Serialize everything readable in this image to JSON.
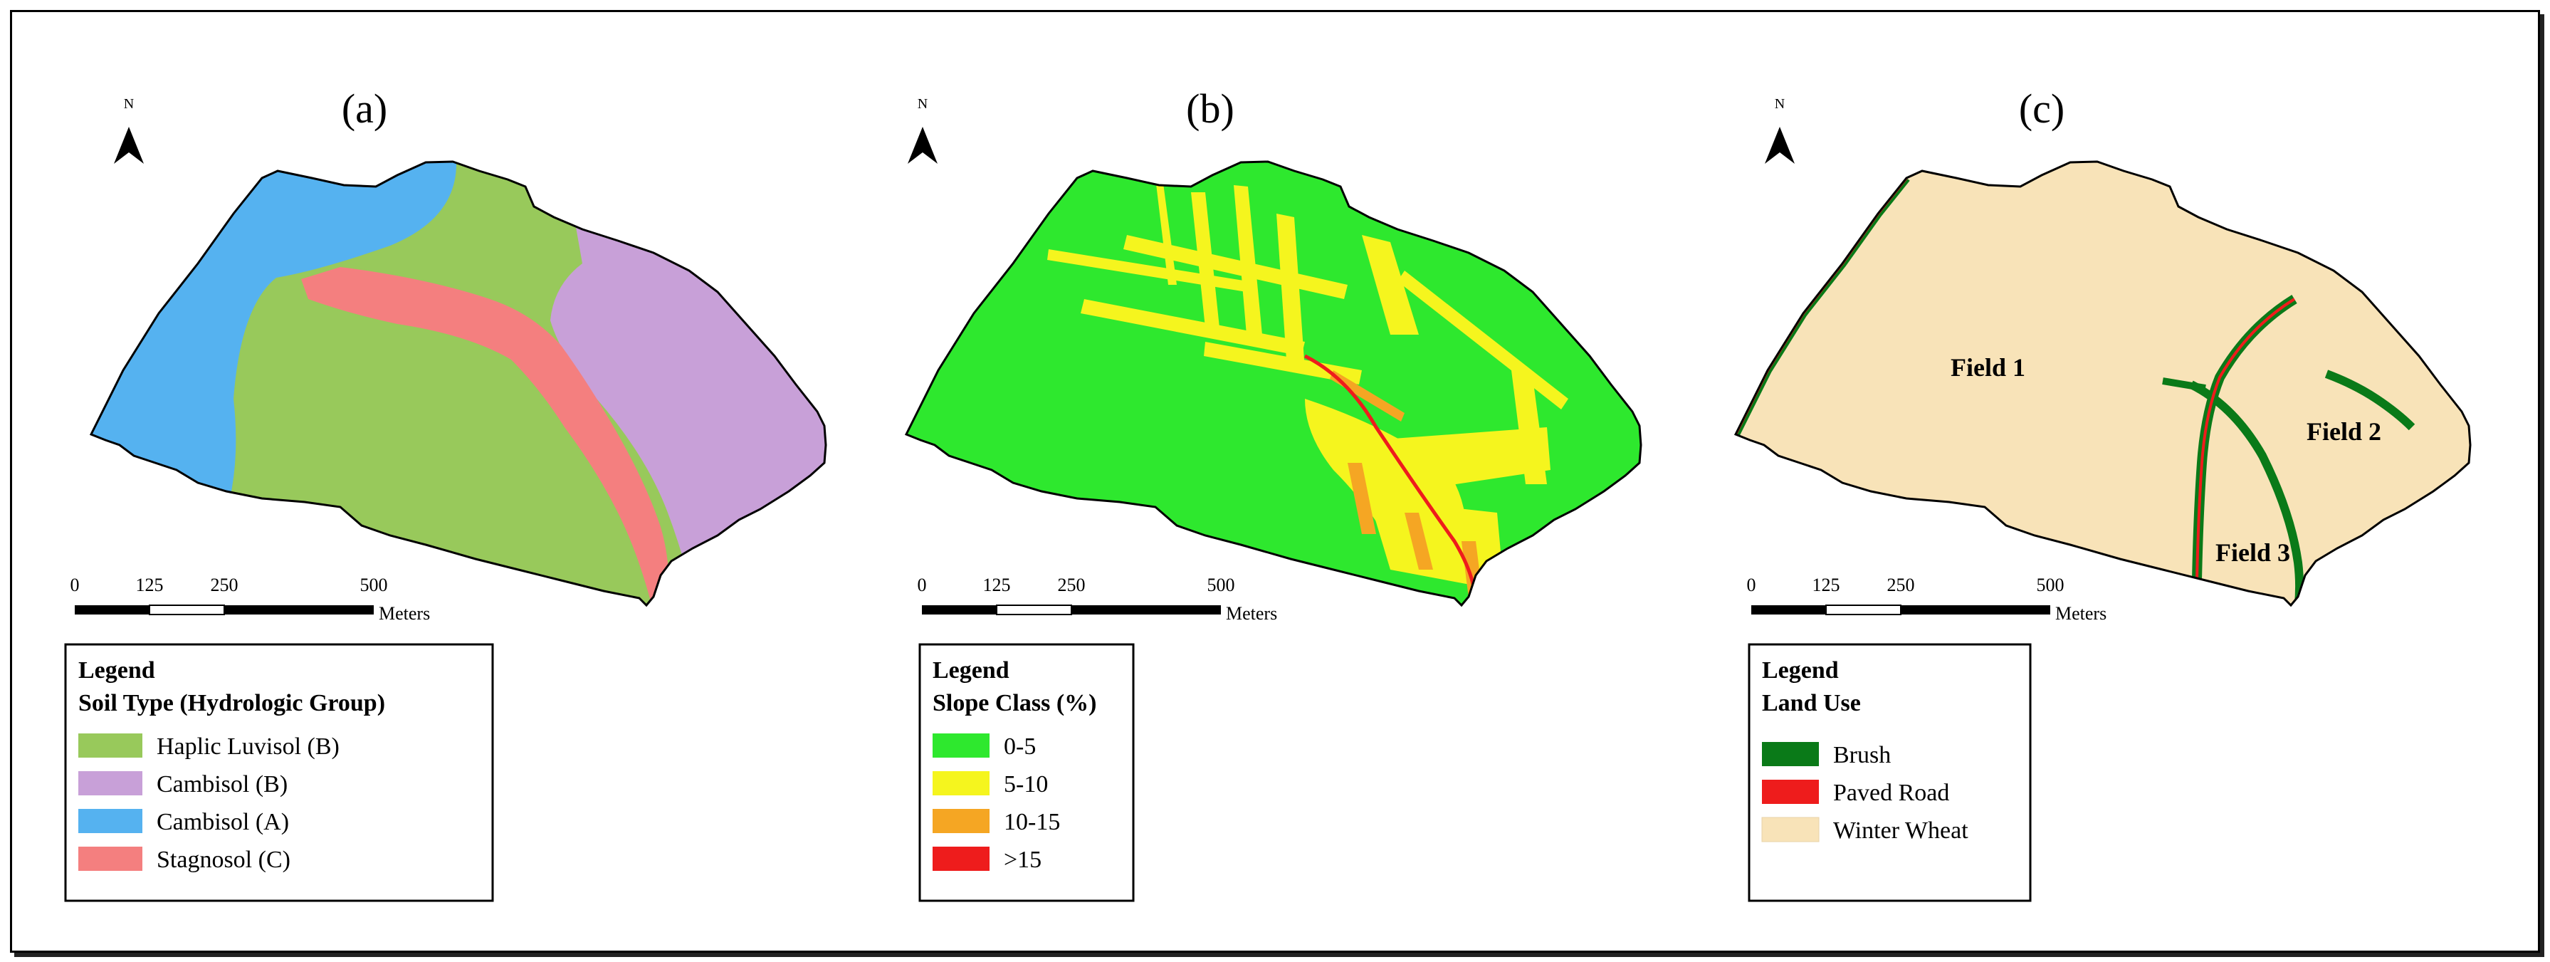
{
  "panels": [
    {
      "id": "a",
      "label": "(a)",
      "north": "N",
      "scale": {
        "t0": "0",
        "t1": "125",
        "t2": "250",
        "t3": "500",
        "unit": "Meters"
      },
      "legend": {
        "heading": "Legend",
        "subheading": "Soil Type (Hydrologic Group)",
        "items": [
          {
            "label": "Haplic Luvisol (B)",
            "color": "#98c95b"
          },
          {
            "label": "Cambisol (B)",
            "color": "#c8a0d8"
          },
          {
            "label": "Cambisol (A)",
            "color": "#55b2f0"
          },
          {
            "label": "Stagnosol (C)",
            "color": "#f47f7f"
          }
        ]
      }
    },
    {
      "id": "b",
      "label": "(b)",
      "north": "N",
      "scale": {
        "t0": "0",
        "t1": "125",
        "t2": "250",
        "t3": "500",
        "unit": "Meters"
      },
      "legend": {
        "heading": "Legend",
        "subheading": "Slope Class (%)",
        "items": [
          {
            "label": "0-5",
            "color": "#2ee82e"
          },
          {
            "label": "5-10",
            "color": "#f5f51e"
          },
          {
            "label": "10-15",
            "color": "#f5a623"
          },
          {
            "label": ">15",
            "color": "#ee1c1c"
          }
        ]
      }
    },
    {
      "id": "c",
      "label": "(c)",
      "north": "N",
      "scale": {
        "t0": "0",
        "t1": "125",
        "t2": "250",
        "t3": "500",
        "unit": "Meters"
      },
      "legend": {
        "heading": "Legend",
        "subheading": "Land Use",
        "items": [
          {
            "label": "Brush",
            "color": "#0a7a18"
          },
          {
            "label": "Paved Road",
            "color": "#ee1c1c"
          },
          {
            "label": "Winter Wheat",
            "color": "#f8e3b8"
          }
        ]
      },
      "fields": {
        "field1": "Field 1",
        "field2": "Field 2",
        "field3": "Field 3"
      }
    }
  ]
}
